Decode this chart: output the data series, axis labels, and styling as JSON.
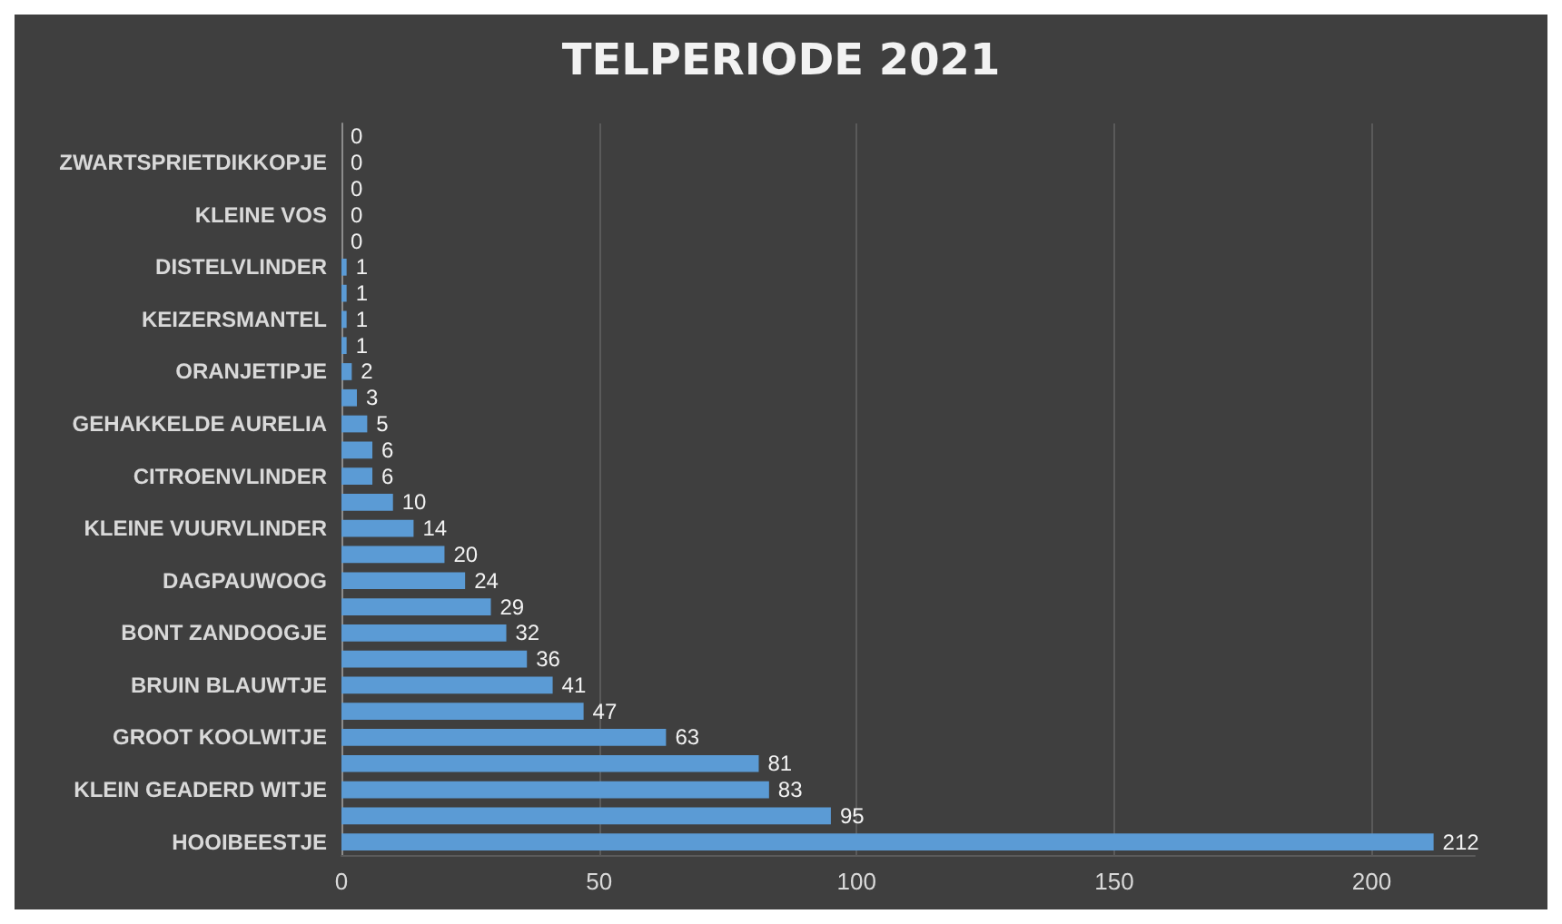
{
  "chart_data": {
    "type": "bar",
    "orientation": "horizontal",
    "title": "TELPERIODE 2021",
    "categories": [
      null,
      "ZWARTSPRIETDIKKOPJE",
      null,
      "KLEINE VOS",
      null,
      "DISTELVLINDER",
      null,
      "KEIZERSMANTEL",
      null,
      "ORANJETIPJE",
      null,
      "GEHAKKELDE AURELIA",
      null,
      "CITROENVLINDER",
      null,
      "KLEINE VUURVLINDER",
      null,
      "DAGPAUWOOG",
      null,
      "BONT ZANDOOGJE",
      null,
      "BRUIN BLAUWTJE",
      null,
      "GROOT KOOLWITJE",
      null,
      "KLEIN GEADERD WITJE",
      null,
      "HOOIBEESTJE"
    ],
    "values": [
      0,
      0,
      0,
      0,
      0,
      1,
      1,
      1,
      1,
      2,
      3,
      5,
      6,
      6,
      10,
      14,
      20,
      24,
      29,
      32,
      36,
      41,
      47,
      63,
      81,
      83,
      95,
      212
    ],
    "color": "#5b9bd5",
    "xlim": [
      0,
      220
    ],
    "xticks": [
      0,
      50,
      100,
      150,
      200
    ],
    "grid": "x",
    "data_labels": true
  }
}
